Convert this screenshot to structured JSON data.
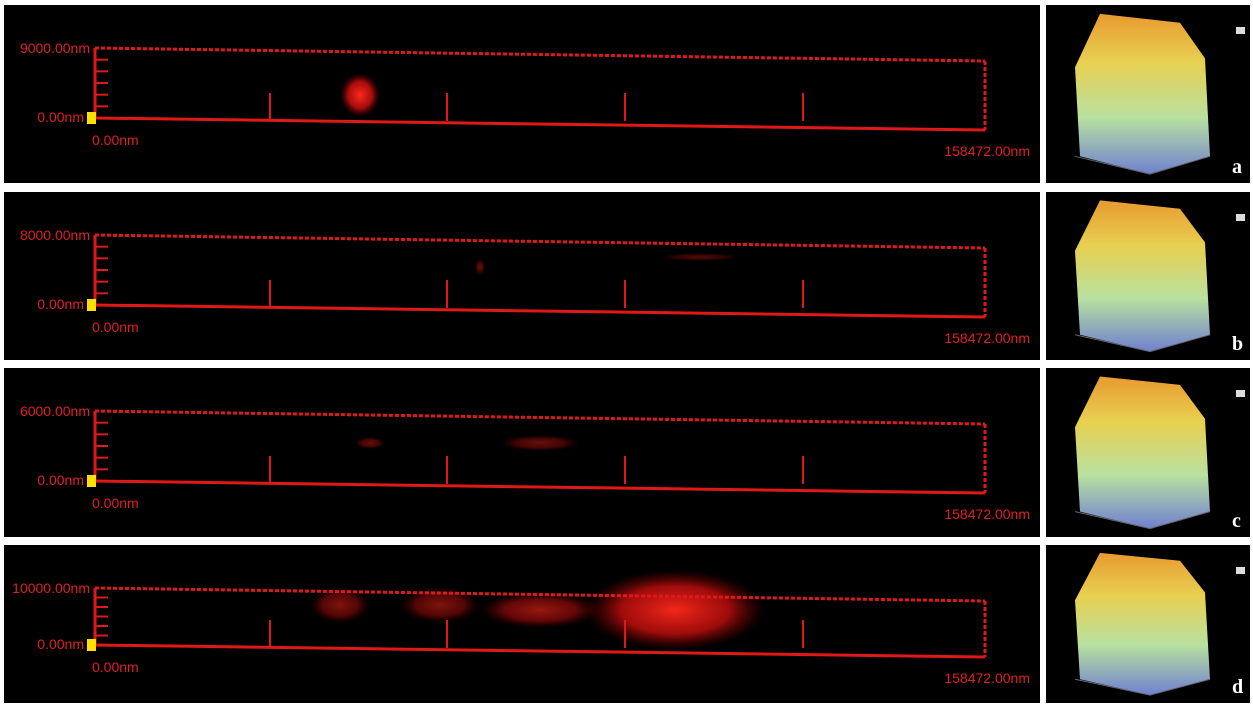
{
  "panels": [
    {
      "label": "a",
      "z_max": "9000.00nm",
      "z_min": "0.00nm",
      "x_min": "0.00nm",
      "x_max": "158472.00nm"
    },
    {
      "label": "b",
      "z_max": "8000.00nm",
      "z_min": "0.00nm",
      "x_min": "0.00nm",
      "x_max": "158472.00nm"
    },
    {
      "label": "c",
      "z_max": "6000.00nm",
      "z_min": "0.00nm",
      "x_min": "0.00nm",
      "x_max": "158472.00nm"
    },
    {
      "label": "d",
      "z_max": "10000.00nm",
      "z_min": "0.00nm",
      "x_min": "0.00nm",
      "x_max": "158472.00nm"
    }
  ]
}
